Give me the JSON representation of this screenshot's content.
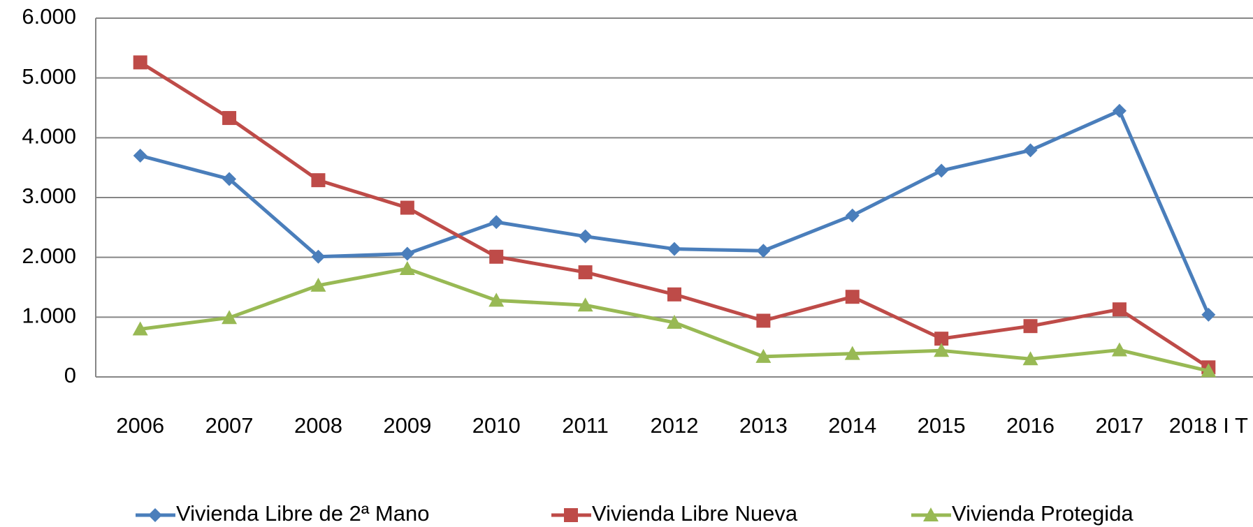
{
  "chart_data": {
    "type": "line",
    "categories": [
      "2006",
      "2007",
      "2008",
      "2009",
      "2010",
      "2011",
      "2012",
      "2013",
      "2014",
      "2015",
      "2016",
      "2017",
      "2018 I T"
    ],
    "series": [
      {
        "name": "Vivienda Libre de 2ª Mano",
        "color": "#4a7ebb",
        "marker": "diamond",
        "values": [
          3700,
          3310,
          2010,
          2060,
          2590,
          2350,
          2140,
          2110,
          2700,
          3450,
          3790,
          4450,
          1040
        ]
      },
      {
        "name": "Vivienda Libre Nueva",
        "color": "#be4b48",
        "marker": "square",
        "values": [
          5260,
          4330,
          3290,
          2830,
          2010,
          1750,
          1380,
          940,
          1340,
          640,
          850,
          1130,
          160
        ]
      },
      {
        "name": "Vivienda Protegida",
        "color": "#98b954",
        "marker": "triangle",
        "values": [
          800,
          990,
          1530,
          1810,
          1280,
          1200,
          910,
          340,
          390,
          440,
          300,
          450,
          100
        ]
      }
    ],
    "ylim": [
      0,
      6000
    ],
    "yticks": [
      0,
      {
        "value": 1000,
        "label": "1.000"
      },
      {
        "value": 2000,
        "label": "2.000"
      },
      {
        "value": 3000,
        "label": "3.000"
      },
      {
        "value": 4000,
        "label": "4.000"
      },
      {
        "value": 5000,
        "label": "5.000"
      },
      {
        "value": 6000,
        "label": "6.000"
      }
    ],
    "grid": true,
    "legend": "bottom"
  }
}
